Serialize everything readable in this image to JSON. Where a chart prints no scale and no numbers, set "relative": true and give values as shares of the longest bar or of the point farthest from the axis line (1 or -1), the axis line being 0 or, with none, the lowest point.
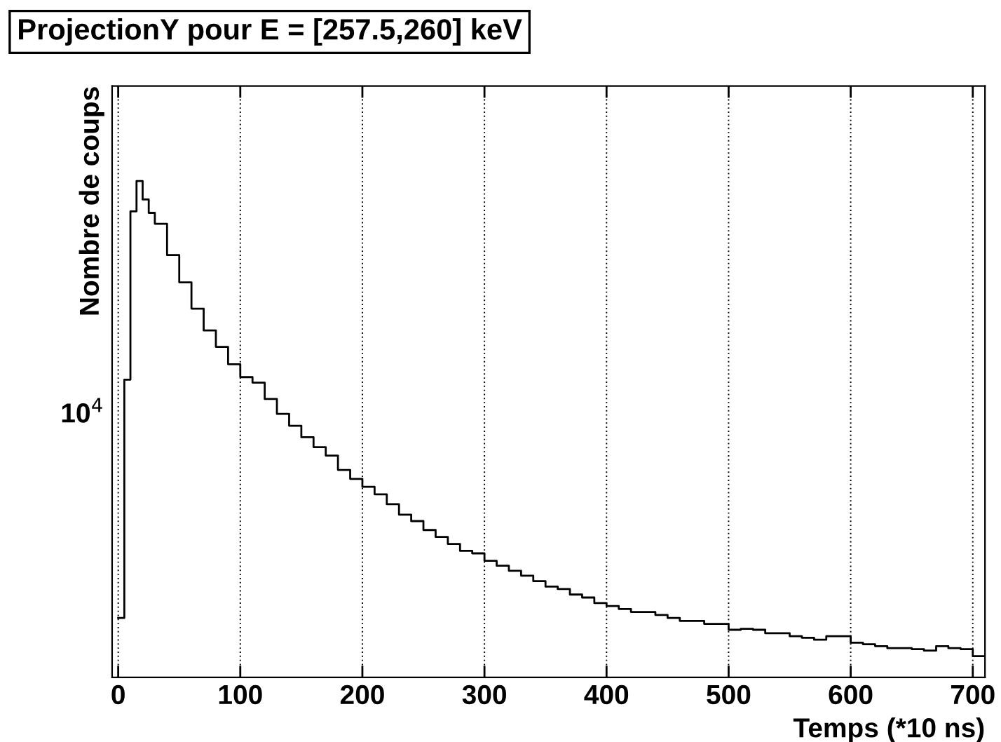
{
  "chart_data": {
    "type": "step",
    "title": "ProjectionY pour E = [257.5,260] keV",
    "xlabel": "Temps (*10 ns)",
    "ylabel": "Nombre de coups",
    "annotations": [
      "10$^{4}$"
    ],
    "relative": true,
    "x": [
      0,
      5,
      10,
      15,
      20,
      25,
      30,
      40,
      50,
      60,
      70,
      80,
      90,
      100,
      110,
      120,
      130,
      140,
      150,
      160,
      170,
      180,
      190,
      200,
      210,
      220,
      230,
      240,
      250,
      260,
      270,
      280,
      290,
      300,
      310,
      320,
      330,
      340,
      350,
      360,
      370,
      380,
      390,
      400,
      410,
      420,
      430,
      440,
      450,
      460,
      470,
      480,
      490,
      500,
      510,
      520,
      530,
      540,
      550,
      560,
      570,
      580,
      590,
      600,
      610,
      620,
      630,
      640,
      650,
      660,
      670,
      680,
      690,
      700,
      710
    ],
    "values": [
      0.12,
      0.6,
      0.939,
      1,
      0.963,
      0.936,
      0.914,
      0.851,
      0.796,
      0.743,
      0.699,
      0.666,
      0.631,
      0.605,
      0.594,
      0.561,
      0.531,
      0.507,
      0.484,
      0.464,
      0.447,
      0.418,
      0.4,
      0.384,
      0.369,
      0.349,
      0.328,
      0.315,
      0.297,
      0.283,
      0.269,
      0.255,
      0.25,
      0.235,
      0.225,
      0.215,
      0.205,
      0.194,
      0.183,
      0.178,
      0.167,
      0.161,
      0.15,
      0.144,
      0.138,
      0.132,
      0.132,
      0.126,
      0.12,
      0.114,
      0.114,
      0.108,
      0.108,
      0.096,
      0.098,
      0.096,
      0.089,
      0.089,
      0.083,
      0.08,
      0.076,
      0.083,
      0.083,
      0.07,
      0.067,
      0.063,
      0.059,
      0.059,
      0.057,
      0.054,
      0.063,
      0.059,
      0.057,
      0.043,
      0.043
    ],
    "color": "#000000",
    "grid": "x",
    "xlim": [
      -5,
      710
    ],
    "xticks": [
      0,
      100,
      200,
      300,
      400,
      500,
      600,
      700
    ]
  }
}
